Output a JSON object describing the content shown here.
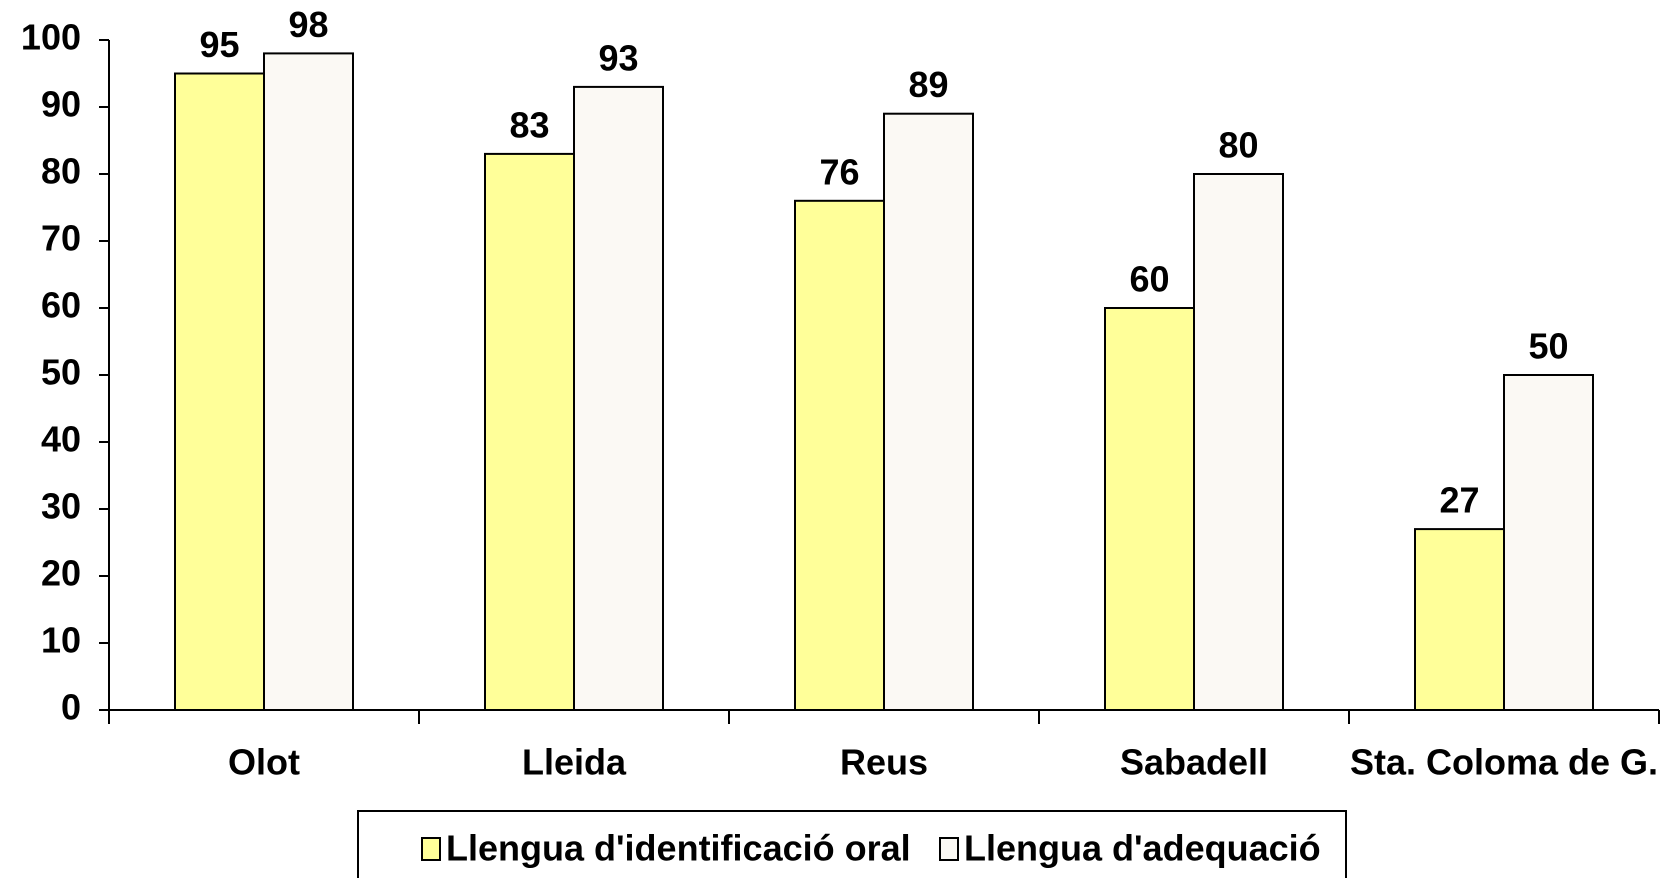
{
  "chart_data": {
    "type": "bar",
    "categories": [
      "Olot",
      "Lleida",
      "Reus",
      "Sabadell",
      "Sta. Coloma de G."
    ],
    "series": [
      {
        "name": "Llengua d'identificació oral",
        "color": "#ffff99",
        "values": [
          95,
          83,
          76,
          60,
          27
        ]
      },
      {
        "name": "Llengua d'adequació",
        "color": "#fbf9f4",
        "values": [
          98,
          93,
          89,
          80,
          50
        ]
      }
    ],
    "ylim": [
      0,
      100
    ],
    "yticks": [
      0,
      10,
      20,
      30,
      40,
      50,
      60,
      70,
      80,
      90,
      100
    ],
    "legend": "bottom"
  }
}
